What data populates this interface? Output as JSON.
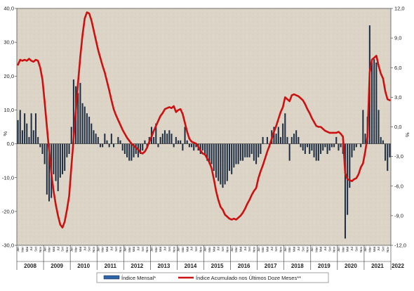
{
  "chart_data": {
    "type": "bar+line",
    "y_left": {
      "label": "%",
      "lim": [
        -30,
        40
      ],
      "ticks": [
        "40,0",
        "30,0",
        "20,0",
        "10,0",
        "0,0",
        "-10,0",
        "-20,0",
        "-30,0"
      ],
      "tick_values": [
        40,
        30,
        20,
        10,
        0,
        -10,
        -20,
        -30
      ]
    },
    "y_right": {
      "label": "%",
      "lim": [
        -12,
        12
      ],
      "ticks": [
        "12,0",
        "9,0",
        "6,0",
        "3,0",
        "0,0",
        "-3,0",
        "-6,0",
        "-9,0",
        "-12,0"
      ],
      "tick_values": [
        12,
        9,
        6,
        3,
        0,
        -3,
        -6,
        -9,
        -12
      ]
    },
    "years": [
      "2008",
      "2009",
      "2010",
      "2011",
      "2012",
      "2013",
      "2014",
      "2015",
      "2016",
      "2017",
      "2018",
      "2019",
      "2020",
      "2021",
      "2022"
    ],
    "month_labels": [
      "Jan",
      "Mar",
      "Mai",
      "Jul",
      "Set",
      "Nov"
    ],
    "series": [
      {
        "name": "Índice Mensal*",
        "type": "bar",
        "axis": "left",
        "color": "#1f2f45",
        "values": [
          7,
          10,
          4,
          9,
          6,
          2,
          9,
          4,
          9,
          2,
          -1,
          -3,
          -6,
          -15,
          -17,
          -16,
          -9,
          -11,
          -14,
          -10,
          -9,
          -8,
          -4,
          -3,
          5,
          19,
          17,
          15,
          18,
          12,
          11,
          9,
          8,
          6,
          4,
          3,
          2,
          -1,
          -1,
          3,
          1,
          -1,
          3,
          -1,
          0,
          2,
          1,
          -2,
          -3,
          -4,
          -5,
          -5,
          -4,
          -3,
          -4,
          -3,
          -2,
          1,
          -1,
          2,
          5,
          2,
          6,
          -1,
          2,
          3,
          4,
          3,
          4,
          3,
          -1,
          2,
          1,
          1,
          -2,
          5,
          1,
          -1,
          -1,
          -2,
          -1,
          -2,
          -3,
          -2,
          -3,
          -5,
          -6,
          -6,
          -8,
          -10,
          -11,
          -12,
          -13,
          -12,
          -11,
          -8,
          -9,
          -7,
          -6,
          -6,
          -5,
          -5,
          -4,
          -4,
          -4,
          -3,
          -5,
          -6,
          -4,
          -3,
          2,
          0,
          2,
          -1,
          4,
          5,
          3,
          5,
          2,
          6,
          9,
          2,
          -5,
          2,
          3,
          4,
          2,
          -1,
          -2,
          -3,
          -1,
          -3,
          -2,
          -4,
          -5,
          -5,
          -3,
          -2,
          -1,
          -3,
          -2,
          -1,
          -1,
          2,
          -2,
          -1,
          -3,
          -28,
          -21,
          -13,
          -4,
          -2,
          -1,
          0,
          -1,
          10,
          3,
          8,
          35,
          24,
          25,
          24,
          10,
          2,
          1,
          -5,
          -8,
          -4
        ]
      },
      {
        "name": "Índice Acumulado nos Últimos Doze Meses**",
        "type": "line",
        "axis": "right",
        "color": "#cc1111",
        "values": [
          6.3,
          6.8,
          6.7,
          6.8,
          6.7,
          6.9,
          6.7,
          6.6,
          6.8,
          6.7,
          6.0,
          4.8,
          2.5,
          0.0,
          -2.4,
          -4.7,
          -6.5,
          -7.9,
          -9.0,
          -9.9,
          -10.2,
          -9.6,
          -8.4,
          -7.0,
          -4.0,
          -1.2,
          1.6,
          4.5,
          7.1,
          9.3,
          11.0,
          11.6,
          11.5,
          10.8,
          9.8,
          8.8,
          7.8,
          7.0,
          6.2,
          5.5,
          4.6,
          3.7,
          2.7,
          1.8,
          1.2,
          0.7,
          0.2,
          -0.3,
          -0.7,
          -1.1,
          -1.4,
          -1.7,
          -1.9,
          -2.1,
          -2.3,
          -2.6,
          -2.7,
          -2.5,
          -2.1,
          -1.5,
          -1.0,
          -0.4,
          0.1,
          0.6,
          1.1,
          1.4,
          1.8,
          1.9,
          2.0,
          1.9,
          2.1,
          1.5,
          1.7,
          1.8,
          1.3,
          0.4,
          -0.5,
          -1.2,
          -1.5,
          -1.6,
          -1.7,
          -2.0,
          -2.4,
          -2.7,
          -2.8,
          -3.2,
          -3.6,
          -4.2,
          -5.3,
          -6.5,
          -7.4,
          -8.1,
          -8.4,
          -8.9,
          -9.1,
          -9.3,
          -9.4,
          -9.3,
          -9.4,
          -9.2,
          -9.0,
          -8.7,
          -8.3,
          -7.8,
          -7.4,
          -6.9,
          -6.5,
          -6.2,
          -5.2,
          -4.5,
          -3.9,
          -3.2,
          -2.5,
          -1.9,
          -1.2,
          -0.5,
          0.1,
          0.8,
          1.5,
          2.0,
          3.0,
          2.8,
          2.6,
          3.2,
          3.3,
          3.2,
          3.1,
          2.9,
          2.7,
          2.3,
          1.8,
          1.4,
          0.9,
          0.5,
          0.1,
          0.0,
          0.0,
          -0.2,
          -0.4,
          -0.5,
          -0.6,
          -0.6,
          -0.6,
          -0.6,
          -0.5,
          -0.7,
          -1.0,
          -4.7,
          -5.3,
          -5.4,
          -5.5,
          -5.3,
          -5.2,
          -4.8,
          -4.1,
          -3.7,
          -2.5,
          -1.0,
          5.5,
          6.8,
          7.0,
          7.2,
          6.2,
          5.4,
          4.9,
          3.6,
          2.8,
          2.7
        ]
      }
    ],
    "legend": {
      "placement": "bottom-center",
      "entries": [
        "Índice Mensal*",
        "Índice Acumulado nos Últimos Doze Meses**"
      ]
    },
    "grid": false,
    "background": "#dcd4c6"
  }
}
